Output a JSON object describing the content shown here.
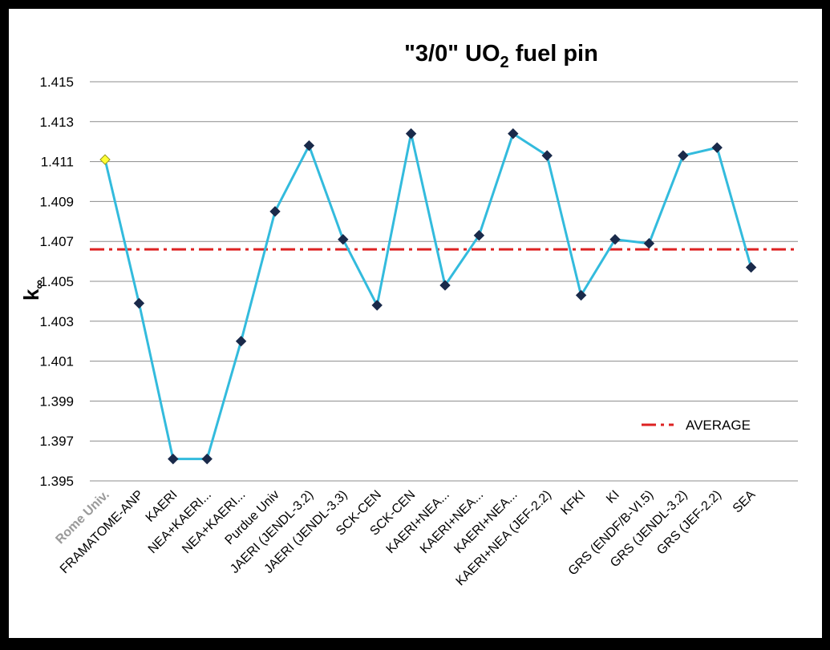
{
  "chart_data": {
    "type": "line",
    "title_parts": {
      "before": "\"3/0\" UO",
      "subscript": "2",
      "after": " fuel pin"
    },
    "ylabel": {
      "main": "k",
      "subscript": "∞"
    },
    "xlabel": "",
    "ylim": [
      1.395,
      1.415
    ],
    "yticks": [
      "1.415",
      "1.413",
      "1.411",
      "1.409",
      "1.407",
      "1.405",
      "1.403",
      "1.401",
      "1.399",
      "1.397",
      "1.395"
    ],
    "grid": true,
    "legend": {
      "placement": "right",
      "average_label": "AVERAGE"
    },
    "categories": [
      "Rome Univ.",
      "FRAMATOME-ANP",
      "KAERI",
      "NEA+KAERI...",
      "NEA+KAERI...",
      "Purdue Univ",
      "JAERI (JENDL-3.2)",
      "JAERI (JENDL-3.3)",
      "SCK-CEN",
      "SCK-CEN",
      "KAERI+NEA...",
      "KAERI+NEA...",
      "KAERI+NEA...",
      "KAERI+NEA (JEF-2.2)",
      "KFKI",
      "KI",
      "GRS (ENDF/B-VI.5)",
      "GRS (JENDL-3.2)",
      "GRS (JEF-2.2)",
      "SEA"
    ],
    "series": [
      {
        "values": [
          1.4111,
          1.4039,
          1.3961,
          1.3961,
          1.402,
          1.4085,
          1.4118,
          1.4071,
          1.4038,
          1.4124,
          1.4048,
          1.4073,
          1.4124,
          1.4113,
          1.4043,
          1.4071,
          1.4069,
          1.4113,
          1.4117,
          1.4057
        ]
      }
    ],
    "average": 1.4066,
    "highlight_index": 0,
    "colors": {
      "line": "#33bbdd",
      "marker": "#1a2a4a",
      "highlight_marker": "#ffff33",
      "average": "#dd2222",
      "grid": "#8c8c8c",
      "first_label": "#9a9a9a"
    }
  }
}
